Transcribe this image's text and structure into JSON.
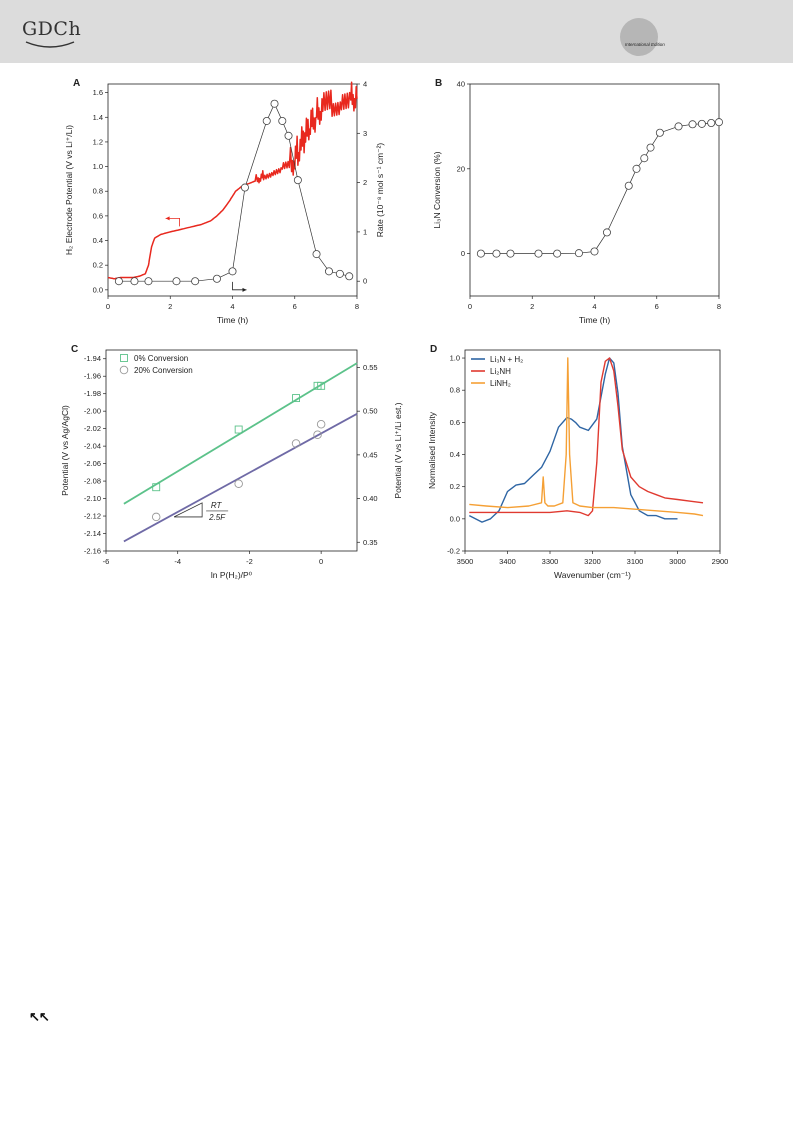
{
  "header": {
    "logo_text": "GDCh",
    "edition_label": "International Edition"
  },
  "footer": {
    "back_icon_glyph": "↖↖"
  },
  "chart_data": [
    {
      "id": "A",
      "panel_label": "A",
      "type": "line",
      "xlabel": "Time (h)",
      "ylabel": "H₂ Electrode Potential (V vs Li⁺/Li)",
      "y2label": "Rate (10⁻⁸ mol s⁻¹ cm⁻²)",
      "xlim": [
        0,
        8
      ],
      "ylim": [
        -0.05,
        1.67
      ],
      "y2lim": [
        -0.3,
        4
      ],
      "xticks": [
        0,
        2,
        4,
        6,
        8
      ],
      "yticks": [
        0.0,
        0.2,
        0.4,
        0.6,
        0.8,
        1.0,
        1.2,
        1.4,
        1.6
      ],
      "y2ticks": [
        0,
        1,
        2,
        3,
        4
      ],
      "series": [
        {
          "axis": "left",
          "color": "#e8281e",
          "x": [
            0,
            0.2,
            0.4,
            0.6,
            0.8,
            1.0,
            1.2,
            1.3,
            1.4,
            1.5,
            1.7,
            2.0,
            2.5,
            3.0,
            3.3,
            3.5,
            3.7,
            3.9,
            4.1,
            4.3,
            4.5,
            4.8,
            5.0,
            5.3,
            5.6,
            5.9,
            6.1,
            6.3,
            6.5,
            6.7,
            6.9,
            7.2,
            7.5,
            7.8,
            8.0
          ],
          "y": [
            0.1,
            0.09,
            0.1,
            0.1,
            0.1,
            0.11,
            0.13,
            0.2,
            0.35,
            0.42,
            0.45,
            0.47,
            0.5,
            0.53,
            0.56,
            0.6,
            0.65,
            0.72,
            0.8,
            0.84,
            0.86,
            0.89,
            0.92,
            0.95,
            0.98,
            1.0,
            1.1,
            1.2,
            1.3,
            1.4,
            1.47,
            1.5,
            1.52,
            1.54,
            1.55
          ]
        },
        {
          "axis": "right",
          "color": "#333333",
          "x": [
            0.35,
            0.85,
            1.3,
            2.2,
            2.8,
            3.5,
            4.0,
            4.4,
            5.1,
            5.35,
            5.6,
            5.8,
            6.1,
            6.7,
            7.1,
            7.45,
            7.75
          ],
          "y": [
            0.0,
            0.0,
            0.0,
            0.0,
            0.0,
            0.05,
            0.2,
            1.9,
            3.25,
            3.6,
            3.25,
            2.95,
            2.05,
            0.55,
            0.2,
            0.15,
            0.1
          ]
        }
      ]
    },
    {
      "id": "B",
      "panel_label": "B",
      "type": "line",
      "xlabel": "Time (h)",
      "ylabel": "Li₃N Conversion (%)",
      "xlim": [
        0,
        8
      ],
      "ylim": [
        -10,
        40
      ],
      "xticks": [
        0,
        2,
        4,
        6,
        8
      ],
      "yticks": [
        0,
        20,
        40
      ],
      "series": [
        {
          "color": "#333333",
          "x": [
            0.35,
            0.85,
            1.3,
            2.2,
            2.8,
            3.5,
            4.0,
            4.4,
            5.1,
            5.35,
            5.6,
            5.8,
            6.1,
            6.7,
            7.15,
            7.45,
            7.75,
            8.0
          ],
          "y": [
            0,
            0,
            0,
            0,
            0,
            0.1,
            0.5,
            5,
            16,
            20,
            22.5,
            25,
            28.5,
            30,
            30.5,
            30.6,
            30.8,
            31
          ]
        }
      ]
    },
    {
      "id": "C",
      "panel_label": "C",
      "type": "scatter",
      "xlabel": "ln P(H₂)/P⁰",
      "ylabel": "Potential (V vs Ag/AgCl)",
      "y2label": "Potential (V vs Li⁺/Li est.)",
      "xlim": [
        -6,
        1
      ],
      "ylim": [
        -2.16,
        -1.93
      ],
      "y2lim": [
        0.34,
        0.57
      ],
      "xticks": [
        -6,
        -4,
        -2,
        0
      ],
      "yticks": [
        -2.16,
        -2.14,
        -2.12,
        -2.1,
        -2.08,
        -2.06,
        -2.04,
        -2.02,
        -2.0,
        -1.98,
        -1.96,
        -1.94
      ],
      "y2ticks": [
        0.35,
        0.4,
        0.45,
        0.5,
        0.55
      ],
      "slope_label_num": "RT",
      "slope_label_den": "2.5F",
      "series": [
        {
          "name": "0% Conversion",
          "marker": "square",
          "color": "#5cc28a",
          "line_color": "#5cc28a",
          "x": [
            -4.6,
            -2.3,
            -0.7,
            -0.1,
            0.0
          ],
          "y": [
            -2.087,
            -2.021,
            -1.985,
            -1.971,
            -1.971
          ],
          "fit": {
            "x": [
              -5.5,
              1.0
            ],
            "y": [
              -2.106,
              -1.945
            ]
          }
        },
        {
          "name": "20% Conversion",
          "marker": "circle",
          "color": "#999999",
          "line_color": "#6f6aa6",
          "x": [
            -4.6,
            -2.3,
            -0.7,
            -0.1,
            0.0
          ],
          "y": [
            -2.121,
            -2.083,
            -2.037,
            -2.027,
            -2.015
          ],
          "fit": {
            "x": [
              -5.5,
              1.0
            ],
            "y": [
              -2.149,
              -2.003
            ]
          }
        }
      ]
    },
    {
      "id": "D",
      "panel_label": "D",
      "type": "line",
      "xlabel": "Wavenumber (cm⁻¹)",
      "ylabel": "Normalised Intensity",
      "xlim": [
        3500,
        2900
      ],
      "ylim": [
        -0.2,
        1.05
      ],
      "xticks": [
        3500,
        3400,
        3300,
        3200,
        3100,
        3000,
        2900
      ],
      "yticks": [
        -0.2,
        0.0,
        0.2,
        0.4,
        0.6,
        0.8,
        1.0
      ],
      "series": [
        {
          "name": "Li₃N + H₂",
          "color": "#2e65a4",
          "x": [
            3490,
            3460,
            3440,
            3420,
            3400,
            3380,
            3360,
            3340,
            3320,
            3300,
            3280,
            3260,
            3250,
            3240,
            3230,
            3210,
            3190,
            3170,
            3160,
            3150,
            3140,
            3130,
            3110,
            3090,
            3070,
            3050,
            3030,
            3010,
            3000
          ],
          "y": [
            0.02,
            -0.02,
            0.0,
            0.05,
            0.17,
            0.21,
            0.22,
            0.27,
            0.32,
            0.42,
            0.57,
            0.63,
            0.62,
            0.6,
            0.57,
            0.55,
            0.62,
            0.9,
            1.0,
            0.97,
            0.78,
            0.45,
            0.15,
            0.05,
            0.02,
            0.02,
            0.0,
            0.0,
            0.0
          ]
        },
        {
          "name": "Li₂NH",
          "color": "#e03a30",
          "x": [
            3490,
            3450,
            3400,
            3350,
            3300,
            3260,
            3230,
            3210,
            3200,
            3190,
            3180,
            3170,
            3160,
            3150,
            3140,
            3130,
            3110,
            3090,
            3070,
            3050,
            3030,
            3000,
            2970,
            2940
          ],
          "y": [
            0.04,
            0.04,
            0.04,
            0.04,
            0.04,
            0.05,
            0.04,
            0.02,
            0.05,
            0.35,
            0.85,
            0.98,
            1.0,
            0.92,
            0.7,
            0.43,
            0.26,
            0.2,
            0.17,
            0.15,
            0.13,
            0.12,
            0.11,
            0.1
          ]
        },
        {
          "name": "LiNH₂",
          "color": "#f5a035",
          "x": [
            3490,
            3450,
            3400,
            3350,
            3320,
            3316,
            3312,
            3305,
            3290,
            3270,
            3262,
            3258,
            3254,
            3246,
            3230,
            3200,
            3150,
            3100,
            3050,
            3000,
            2960,
            2940
          ],
          "y": [
            0.09,
            0.08,
            0.07,
            0.08,
            0.1,
            0.26,
            0.1,
            0.08,
            0.08,
            0.1,
            0.4,
            1.0,
            0.4,
            0.1,
            0.08,
            0.07,
            0.07,
            0.06,
            0.05,
            0.04,
            0.03,
            0.02
          ]
        }
      ]
    }
  ]
}
